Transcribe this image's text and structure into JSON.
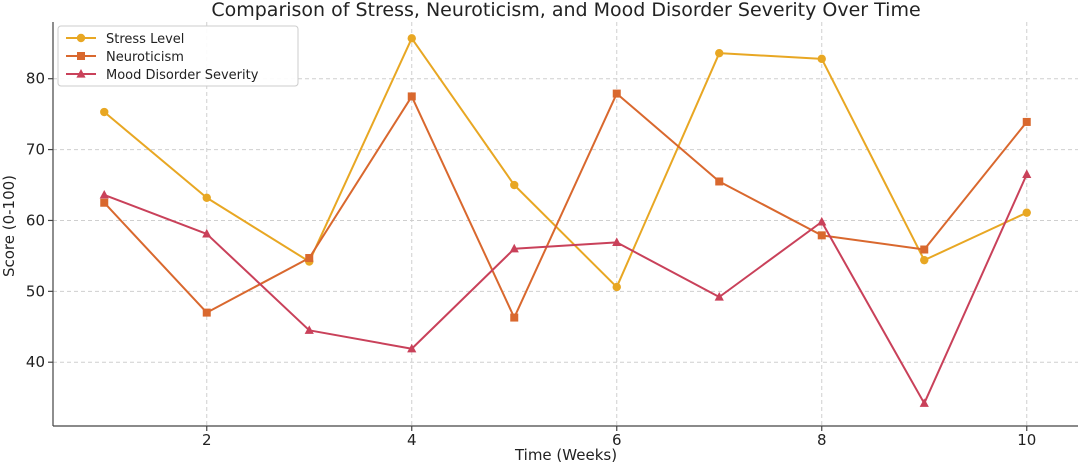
{
  "chart_data": {
    "type": "line",
    "title": "Comparison of Stress, Neuroticism, and Mood Disorder Severity Over Time",
    "xlabel": "Time (Weeks)",
    "ylabel": "Score (0-100)",
    "x": [
      1,
      2,
      3,
      4,
      5,
      6,
      7,
      8,
      9,
      10
    ],
    "xlim": [
      0.5,
      10.5
    ],
    "ylim": [
      31,
      88
    ],
    "xticks": [
      2,
      4,
      6,
      8,
      10
    ],
    "yticks": [
      40,
      50,
      60,
      70,
      80
    ],
    "grid": true,
    "legend_position": "top-left",
    "series": [
      {
        "name": "Stress Level",
        "marker": "circle",
        "color": "#E8A723",
        "values": [
          75.3,
          63.2,
          54.2,
          85.7,
          65.0,
          50.6,
          83.6,
          82.8,
          54.4,
          61.1
        ]
      },
      {
        "name": "Neuroticism",
        "marker": "square",
        "color": "#D9682E",
        "values": [
          62.5,
          47.0,
          54.7,
          77.5,
          46.3,
          77.9,
          65.5,
          57.9,
          55.9,
          73.9
        ]
      },
      {
        "name": "Mood Disorder Severity",
        "marker": "triangle",
        "color": "#C9415A",
        "values": [
          63.6,
          58.1,
          44.5,
          41.9,
          56.0,
          56.9,
          49.2,
          59.8,
          34.2,
          66.5
        ]
      }
    ]
  }
}
